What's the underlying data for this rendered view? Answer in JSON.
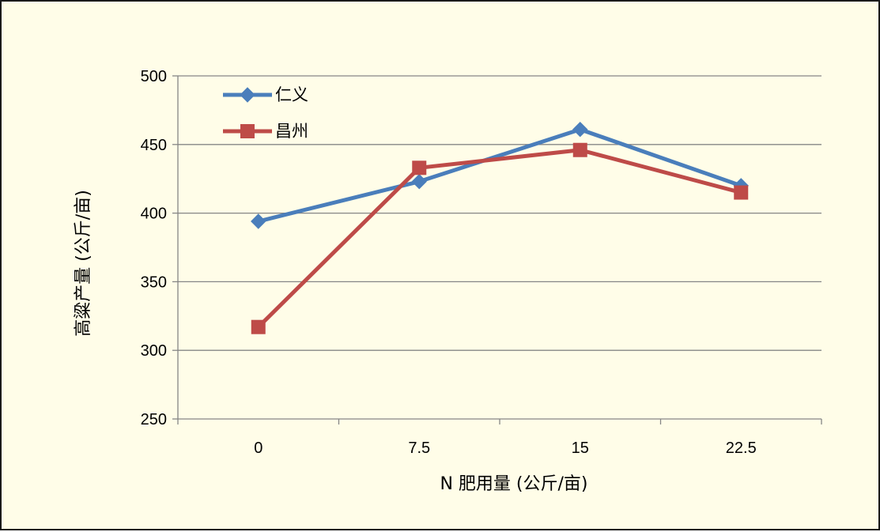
{
  "chart_data": {
    "type": "line",
    "title": "",
    "xlabel": "N 肥用量 (公斤/亩)",
    "ylabel": "高粱产量 (公斤/亩)",
    "categories": [
      "0",
      "7.5",
      "15",
      "22.5"
    ],
    "ylim": [
      250,
      500
    ],
    "yticks": [
      "250",
      "300",
      "350",
      "400",
      "450",
      "500"
    ],
    "grid": true,
    "legend_position": "top-left",
    "series": [
      {
        "name": "仁义",
        "values": [
          394,
          423,
          461,
          420
        ],
        "color": "#4a7ebb",
        "marker": "diamond"
      },
      {
        "name": "昌州",
        "values": [
          317,
          433,
          446,
          415
        ],
        "color": "#be4b48",
        "marker": "square"
      }
    ]
  },
  "colors": {
    "background": "#fffde8",
    "grid": "#868686",
    "axis": "#868686"
  }
}
